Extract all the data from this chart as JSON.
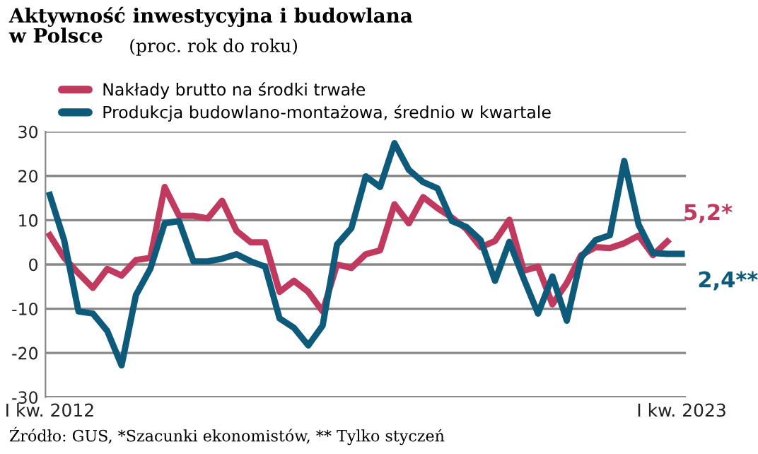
{
  "chart_data": {
    "type": "line",
    "title": "Aktywność inwestycyjna i budowlana\nw Polsce",
    "subtitle": "(proc. rok do roku)",
    "categories": [
      "I kw. 2012",
      null,
      null,
      null,
      null,
      null,
      null,
      null,
      null,
      null,
      null,
      null,
      null,
      null,
      null,
      null,
      null,
      null,
      null,
      null,
      null,
      null,
      null,
      null,
      null,
      null,
      null,
      null,
      null,
      null,
      null,
      null,
      null,
      null,
      null,
      null,
      null,
      null,
      null,
      null,
      null,
      null,
      null,
      null,
      "I kw. 2023"
    ],
    "series": [
      {
        "name": "Nakłady brutto na środki trwałe",
        "color": "#c0395e",
        "values": [
          6.6,
          1.5,
          -2,
          -5.3,
          -1,
          -2.5,
          1,
          1.5,
          17.5,
          11,
          11,
          10.4,
          14.4,
          7.6,
          5,
          5,
          -6.2,
          -3.7,
          -6.2,
          -10.6,
          0,
          -0.8,
          2.3,
          3.2,
          13.6,
          9.3,
          15.2,
          12.7,
          10.6,
          8.0,
          3.9,
          5.3,
          10.1,
          -1.4,
          -0.5,
          -9.0,
          -4.2,
          2.1,
          3.9,
          3.7,
          4.8,
          6.5,
          2.1,
          5.2,
          null
        ]
      },
      {
        "name": "Produkcja budowlano-montażowa, średnio w kwartale",
        "color": "#0d5a7a",
        "values": [
          15.7,
          5.5,
          -10.6,
          -11.1,
          -15,
          -22.8,
          -6.9,
          -1,
          9.3,
          9.8,
          0.7,
          0.7,
          1.3,
          2.3,
          0.7,
          -0.5,
          -12.2,
          -14.3,
          -18.3,
          -13.8,
          4.5,
          8.2,
          19.9,
          17.5,
          27.4,
          21.4,
          18.6,
          17.2,
          9.8,
          8.5,
          5.5,
          -3.7,
          5.1,
          -3.2,
          -11.1,
          -2.7,
          -12.7,
          1.6,
          5.5,
          6.6,
          23.4,
          9.0,
          2.6,
          2.4,
          2.4
        ]
      }
    ],
    "ylim": [
      -30,
      30
    ],
    "yticks": [
      -30,
      -20,
      -10,
      0,
      10,
      20,
      30
    ],
    "grid": "y",
    "legend": "top left",
    "marker": "none",
    "line_style": "solid",
    "annotations": [
      "5,2*",
      "2,4**",
      "Źródło: GUS, *Szacunki ekonomistów, ** Tylko styczeń"
    ]
  }
}
